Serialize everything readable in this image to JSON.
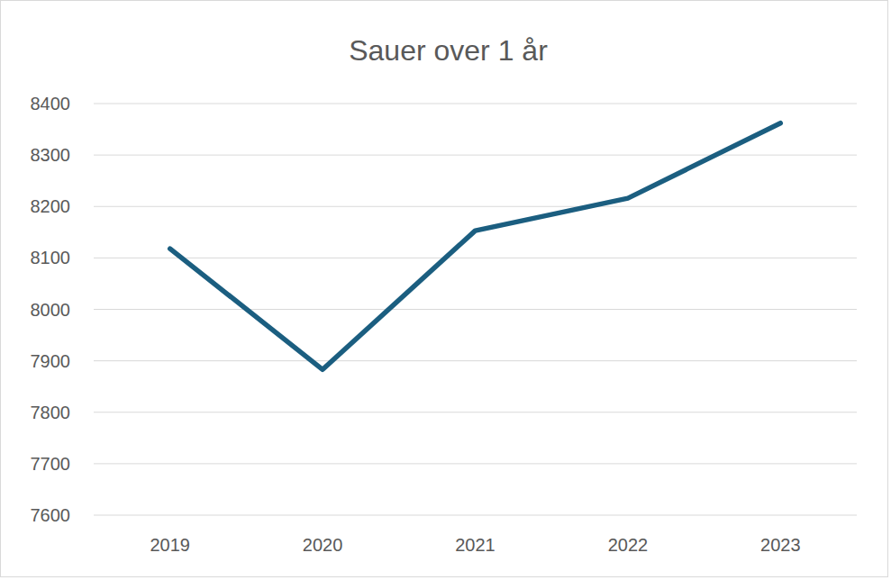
{
  "chart_data": {
    "type": "line",
    "title": "Sauer over 1 år",
    "categories": [
      "2019",
      "2020",
      "2021",
      "2022",
      "2023"
    ],
    "values": [
      8118,
      7883,
      8153,
      8216,
      8362
    ],
    "color": "#1b5e80",
    "ylim": [
      7600,
      8400
    ],
    "yticks": [
      7600,
      7700,
      7800,
      7900,
      8000,
      8100,
      8200,
      8300,
      8400
    ],
    "grid": true
  }
}
